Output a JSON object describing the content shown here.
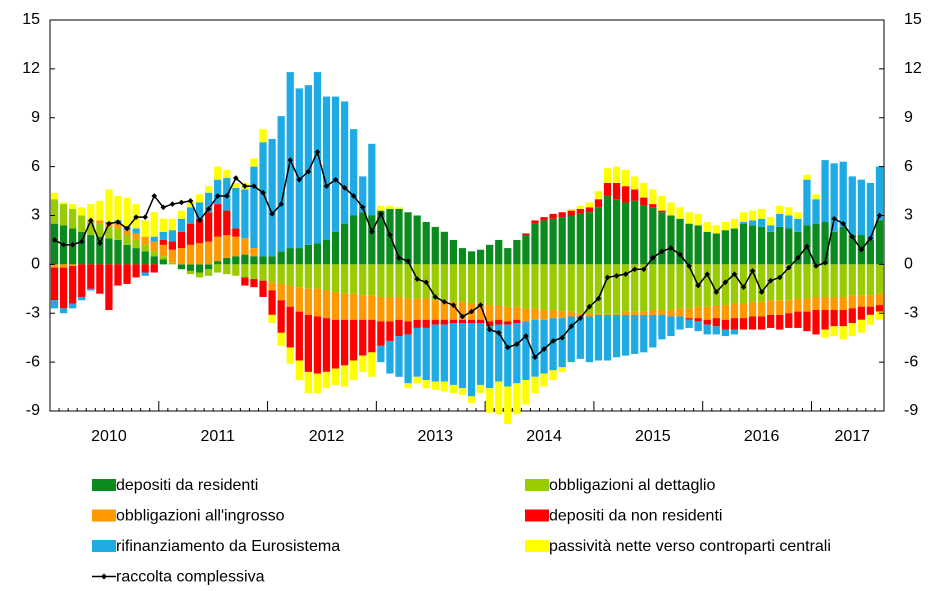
{
  "chart_data": {
    "type": "bar",
    "categories": [
      null,
      null,
      null,
      null,
      null,
      null,
      "2010",
      null,
      null,
      null,
      null,
      null,
      null,
      null,
      null,
      null,
      null,
      null,
      "2011",
      null,
      null,
      null,
      null,
      null,
      null,
      null,
      null,
      null,
      null,
      null,
      "2012",
      null,
      null,
      null,
      null,
      null,
      null,
      null,
      null,
      null,
      null,
      null,
      "2013",
      null,
      null,
      null,
      null,
      null,
      null,
      null,
      null,
      null,
      null,
      null,
      "2014",
      null,
      null,
      null,
      null,
      null,
      null,
      null,
      null,
      null,
      null,
      null,
      "2015",
      null,
      null,
      null,
      null,
      null,
      null,
      null,
      null,
      null,
      null,
      null,
      "2016",
      null,
      null,
      null,
      null,
      null,
      null,
      null,
      null,
      null,
      "2017",
      null,
      null,
      null
    ],
    "ylim": [
      -9,
      15
    ],
    "yticks": [
      -9,
      -6,
      -3,
      0,
      3,
      6,
      9,
      12,
      15
    ],
    "y2lim": [
      -9,
      15
    ],
    "y2ticks": [
      -9,
      -6,
      -3,
      0,
      3,
      6,
      9,
      12,
      15
    ],
    "grid": false,
    "series": [
      {
        "name": "depositi da residenti",
        "type": "bar",
        "color": "#0b8a1f",
        "values": [
          2.5,
          2.4,
          2.2,
          2.0,
          1.8,
          1.7,
          1.6,
          1.5,
          1.2,
          1.0,
          0.8,
          0.5,
          0.3,
          0.0,
          -0.3,
          -0.4,
          -0.5,
          -0.3,
          0.2,
          0.4,
          0.5,
          0.6,
          0.5,
          0.5,
          0.5,
          0.8,
          1.0,
          1.0,
          1.2,
          1.3,
          1.5,
          2.0,
          2.5,
          3.0,
          3.2,
          3.0,
          3.3,
          3.4,
          3.4,
          3.2,
          3.0,
          2.6,
          2.3,
          2.0,
          1.5,
          1.0,
          0.8,
          0.9,
          1.2,
          1.5,
          1.0,
          1.5,
          1.8,
          2.5,
          2.7,
          2.8,
          2.9,
          3.0,
          3.1,
          3.2,
          3.5,
          4.2,
          4.0,
          3.8,
          3.9,
          3.6,
          3.5,
          3.2,
          3.0,
          2.8,
          2.5,
          2.4,
          2.0,
          1.9,
          2.1,
          2.2,
          2.5,
          2.4,
          2.3,
          2.0,
          2.3,
          2.2,
          2.0,
          2.4,
          2.5,
          2.6,
          2.0,
          2.3,
          1.8,
          1.8,
          1.5,
          2.7
        ]
      },
      {
        "name": "obbligazioni al dettaglio",
        "type": "bar",
        "color": "#99cc00",
        "values": [
          1.5,
          1.3,
          1.2,
          1.0,
          0.8,
          0.8,
          0.7,
          0.7,
          0.6,
          0.5,
          0.4,
          0.3,
          0.2,
          0.1,
          0.0,
          -0.2,
          -0.3,
          -0.4,
          -0.5,
          -0.6,
          -0.7,
          -0.8,
          -0.9,
          -1.0,
          -1.1,
          -1.2,
          -1.3,
          -1.4,
          -1.5,
          -1.5,
          -1.6,
          -1.7,
          -1.8,
          -1.8,
          -1.9,
          -1.9,
          -2.0,
          -2.0,
          -2.0,
          -2.1,
          -2.1,
          -2.1,
          -2.2,
          -2.2,
          -2.3,
          -2.3,
          -2.4,
          -2.4,
          -2.5,
          -2.5,
          -2.6,
          -2.6,
          -2.7,
          -2.7,
          -2.8,
          -2.8,
          -2.9,
          -2.9,
          -3.0,
          -3.0,
          -3.0,
          -3.0,
          -3.0,
          -2.9,
          -2.9,
          -2.9,
          -2.8,
          -2.8,
          -2.8,
          -2.7,
          -2.7,
          -2.6,
          -2.6,
          -2.5,
          -2.5,
          -2.4,
          -2.4,
          -2.3,
          -2.3,
          -2.2,
          -2.2,
          -2.2,
          -2.1,
          -2.1,
          -2.0,
          -2.0,
          -2.0,
          -2.0,
          -1.9,
          -1.9,
          -1.9,
          -1.8
        ]
      },
      {
        "name": "obbligazioni all'ingrosso",
        "type": "bar",
        "color": "#ff9900",
        "values": [
          -0.2,
          -0.2,
          -0.1,
          0.0,
          0.1,
          0.2,
          0.2,
          0.3,
          0.3,
          0.4,
          0.5,
          0.6,
          0.7,
          0.8,
          1.0,
          1.2,
          1.3,
          1.4,
          1.5,
          1.4,
          1.2,
          1.0,
          0.5,
          0.0,
          -0.5,
          -1.0,
          -1.3,
          -1.5,
          -1.6,
          -1.7,
          -1.7,
          -1.7,
          -1.6,
          -1.6,
          -1.5,
          -1.5,
          -1.5,
          -1.5,
          -1.4,
          -1.4,
          -1.3,
          -1.3,
          -1.2,
          -1.2,
          -1.1,
          -1.1,
          -1.0,
          -1.0,
          -1.0,
          -0.9,
          -0.9,
          -0.8,
          -0.8,
          -0.7,
          -0.6,
          -0.5,
          -0.4,
          -0.3,
          -0.2,
          -0.2,
          -0.1,
          -0.1,
          -0.1,
          -0.2,
          -0.2,
          -0.2,
          -0.3,
          -0.3,
          -0.4,
          -0.5,
          -0.6,
          -0.7,
          -0.8,
          -0.8,
          -0.9,
          -0.9,
          -0.9,
          -0.9,
          -0.9,
          -0.9,
          -0.9,
          -0.8,
          -0.8,
          -0.8,
          -0.8,
          -0.8,
          -0.8,
          -0.8,
          -0.8,
          -0.7,
          -0.7,
          -0.7
        ]
      },
      {
        "name": "depositi da non residenti",
        "type": "bar",
        "color": "#ff0000",
        "values": [
          -2.0,
          -2.5,
          -2.3,
          -2.0,
          -1.5,
          -1.8,
          -2.8,
          -1.3,
          -1.2,
          -0.8,
          -0.5,
          -0.5,
          0.3,
          0.5,
          1.0,
          1.3,
          1.5,
          1.8,
          2.0,
          1.5,
          0.5,
          -0.5,
          -0.5,
          -1.0,
          -1.5,
          -2.0,
          -2.5,
          -3.0,
          -3.5,
          -3.5,
          -3.3,
          -3.0,
          -2.8,
          -2.5,
          -2.2,
          -2.0,
          -1.5,
          -1.2,
          -1.0,
          -0.8,
          -0.5,
          -0.5,
          -0.3,
          -0.3,
          -0.2,
          -0.2,
          -0.2,
          -0.2,
          -0.3,
          -0.3,
          -0.2,
          -0.2,
          0.1,
          0.2,
          0.2,
          0.3,
          0.3,
          0.3,
          0.3,
          0.3,
          0.5,
          0.8,
          1.0,
          1.0,
          0.7,
          0.5,
          0.2,
          0.1,
          0.0,
          0.0,
          -0.1,
          -0.2,
          -0.3,
          -0.5,
          -0.6,
          -0.7,
          -0.7,
          -0.8,
          -0.8,
          -0.8,
          -0.9,
          -0.9,
          -1.0,
          -1.2,
          -1.5,
          -1.2,
          -1.0,
          -1.0,
          -0.9,
          -0.8,
          -0.5,
          -0.4
        ]
      },
      {
        "name": "rifinanziamento da Eurosistema",
        "type": "bar",
        "color": "#1eaae2",
        "values": [
          -0.5,
          -0.3,
          -0.3,
          -0.2,
          -0.1,
          0.0,
          0.1,
          0.2,
          0.2,
          0.3,
          -0.2,
          0.3,
          0.5,
          0.7,
          0.8,
          1.0,
          1.0,
          1.2,
          1.5,
          2.0,
          2.5,
          3.0,
          5.0,
          7.0,
          7.2,
          8.3,
          10.8,
          9.8,
          9.8,
          10.5,
          8.8,
          8.3,
          7.5,
          5.3,
          2.2,
          4.4,
          -1.0,
          -2.0,
          -2.5,
          -3.0,
          -3.0,
          -3.2,
          -3.5,
          -3.5,
          -3.8,
          -4.0,
          -4.5,
          -3.8,
          -3.8,
          -3.5,
          -3.8,
          -3.7,
          -3.6,
          -3.5,
          -3.3,
          -3.2,
          -3.0,
          -2.8,
          -2.6,
          -2.8,
          -2.8,
          -2.8,
          -2.6,
          -2.5,
          -2.4,
          -2.3,
          -2.0,
          -1.5,
          -1.2,
          -0.8,
          -0.5,
          -0.6,
          -0.6,
          -0.5,
          -0.4,
          -0.3,
          0.1,
          0.3,
          0.5,
          0.4,
          0.8,
          0.8,
          0.8,
          2.8,
          1.5,
          3.8,
          4.2,
          4.0,
          3.6,
          3.4,
          3.5,
          3.3
        ]
      },
      {
        "name": "passività nette verso controparti centrali",
        "type": "bar",
        "color": "#ffff00",
        "values": [
          0.4,
          0.1,
          0.3,
          0.5,
          1.0,
          1.2,
          2.0,
          1.5,
          1.8,
          1.5,
          1.0,
          1.5,
          0.8,
          0.7,
          0.5,
          0.4,
          0.5,
          0.4,
          0.8,
          0.5,
          0.3,
          0.4,
          0.5,
          0.8,
          -0.5,
          -0.8,
          -1.0,
          -1.2,
          -1.3,
          -1.2,
          -1.0,
          -1.0,
          -1.3,
          -1.2,
          -1.0,
          -1.5,
          0.3,
          0.2,
          0.1,
          -0.3,
          -0.4,
          -0.5,
          -0.5,
          -0.6,
          -0.5,
          -0.4,
          -0.4,
          -0.5,
          -1.5,
          -2.0,
          -2.3,
          -1.9,
          -1.5,
          -1.0,
          -0.8,
          -0.6,
          -0.3,
          0.1,
          0.2,
          0.3,
          0.5,
          0.9,
          1.0,
          1.0,
          0.8,
          0.9,
          0.9,
          0.9,
          0.8,
          0.7,
          0.7,
          0.7,
          0.6,
          0.5,
          0.5,
          0.6,
          0.6,
          0.6,
          0.6,
          0.5,
          0.5,
          0.5,
          0.4,
          0.3,
          0.3,
          -0.5,
          -0.6,
          -0.8,
          -0.8,
          -0.8,
          -0.6,
          -0.5
        ]
      },
      {
        "name": "raccolta complessiva",
        "type": "line",
        "color": "#000000",
        "values": [
          1.5,
          1.2,
          1.2,
          1.4,
          2.7,
          1.3,
          2.5,
          2.6,
          2.2,
          2.9,
          2.9,
          4.2,
          3.5,
          3.7,
          3.8,
          3.9,
          2.7,
          3.4,
          4.2,
          4.2,
          5.3,
          4.8,
          4.8,
          4.4,
          3.1,
          3.7,
          6.4,
          5.2,
          5.7,
          6.9,
          4.8,
          5.2,
          4.7,
          4.2,
          3.5,
          2.0,
          3.1,
          1.8,
          0.4,
          0.2,
          -0.9,
          -1.1,
          -2.0,
          -2.3,
          -2.5,
          -3.2,
          -2.9,
          -2.5,
          -4.0,
          -4.2,
          -5.1,
          -4.9,
          -4.4,
          -5.7,
          -5.2,
          -4.7,
          -4.5,
          -3.8,
          -3.3,
          -2.6,
          -2.1,
          -0.8,
          -0.7,
          -0.6,
          -0.3,
          -0.3,
          0.4,
          0.8,
          1.0,
          0.6,
          -0.1,
          -1.3,
          -0.6,
          -1.7,
          -1.1,
          -0.6,
          -1.4,
          -0.4,
          -1.7,
          -1.0,
          -0.8,
          -0.2,
          0.4,
          1.1,
          -0.1,
          0.1,
          2.8,
          2.5,
          1.7,
          0.9,
          1.6,
          3.0
        ]
      }
    ]
  }
}
